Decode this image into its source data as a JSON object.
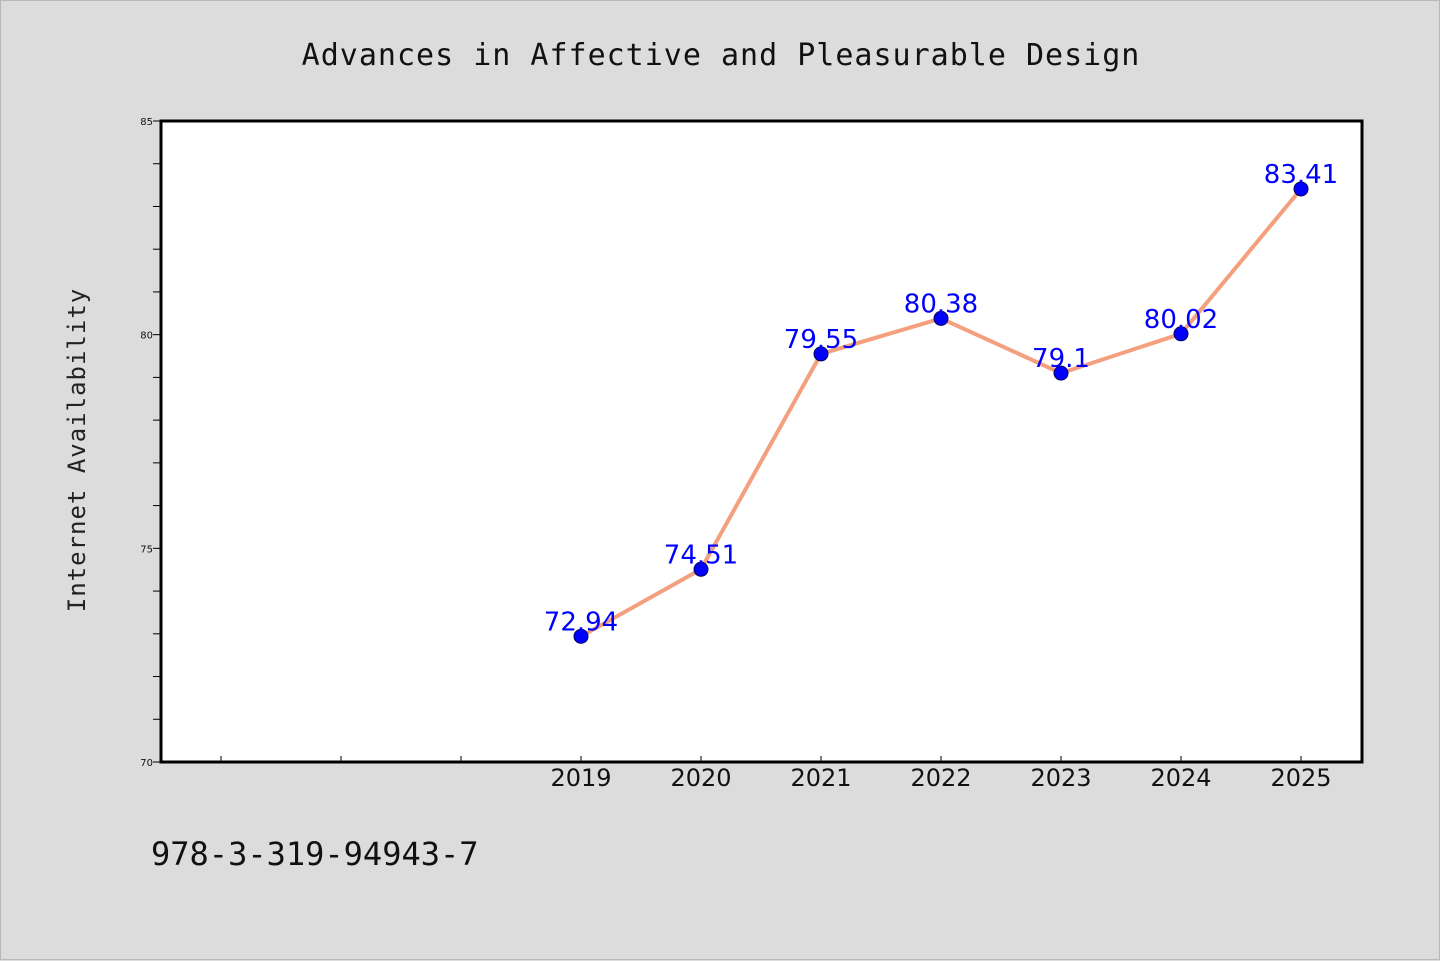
{
  "chart_data": {
    "type": "line",
    "title": "Advances in Affective and Pleasurable Design",
    "xlabel": "",
    "ylabel": "Internet Availability",
    "categories": [
      "2019",
      "2020",
      "2021",
      "2022",
      "2023",
      "2024",
      "2025"
    ],
    "series": [
      {
        "values": [
          72.94,
          74.51,
          79.55,
          80.38,
          79.1,
          80.02,
          83.41
        ],
        "data_labels": [
          "72.94",
          "74.51",
          "79.55",
          "80.38",
          "79.1",
          "80.02",
          "83.41"
        ],
        "line_color": "#f4a07e",
        "marker_color": "#0000ff"
      }
    ],
    "ylim": [
      70,
      85
    ],
    "yticks": [
      "70",
      "75",
      "80",
      "85"
    ],
    "grid": false,
    "legend": "none"
  },
  "footer": {
    "isbn": "978-3-319-94943-7"
  },
  "colors": {
    "background": "#dcdcdc",
    "plot_background": "#ffffff",
    "line": "#f4a07e",
    "marker": "#0000ff",
    "data_label": "#0000ff"
  }
}
